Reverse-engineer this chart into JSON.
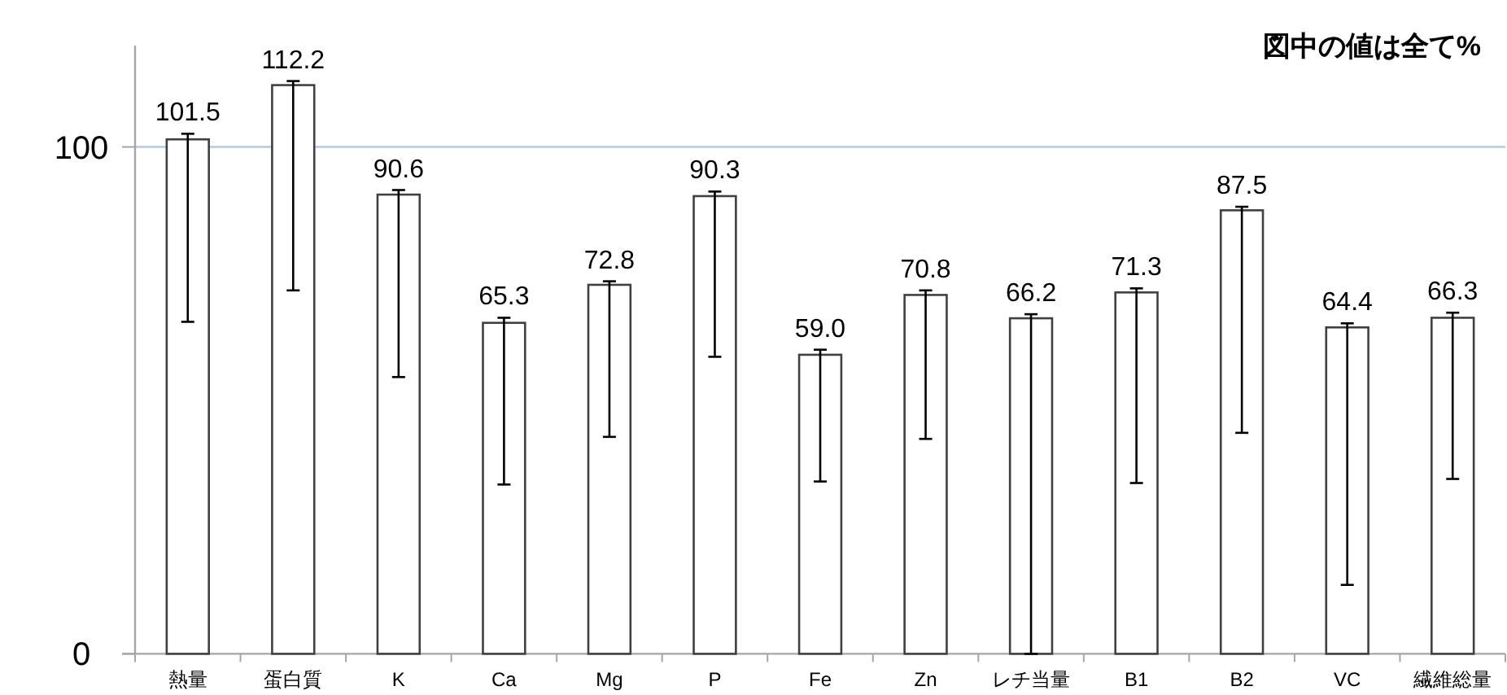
{
  "chart_data": {
    "type": "bar",
    "categories": [
      "熱量",
      "蛋白質",
      "K",
      "Ca",
      "Mg",
      "P",
      "Fe",
      "Zn",
      "レチ当量",
      "B1",
      "B2",
      "VC",
      "繊維総量"
    ],
    "values": [
      101.5,
      112.2,
      90.6,
      65.3,
      72.8,
      90.3,
      59.0,
      70.8,
      66.2,
      71.3,
      87.5,
      64.4,
      66.3
    ],
    "errors": [
      [
        65.5,
        102.6
      ],
      [
        71.7,
        113.0
      ],
      [
        54.6,
        91.5
      ],
      [
        33.4,
        66.3
      ],
      [
        42.8,
        73.5
      ],
      [
        58.6,
        91.2
      ],
      [
        34.0,
        60.0
      ],
      [
        42.4,
        71.7
      ],
      [
        0,
        67.0
      ],
      [
        33.7,
        72.1
      ],
      [
        43.6,
        88.2
      ],
      [
        13.6,
        65.2
      ],
      [
        34.5,
        67.3
      ]
    ],
    "color": "#ffffff",
    "value_labels": [
      "101.5",
      "112.2",
      "90.6",
      "65.3",
      "72.8",
      "90.3",
      "59.0",
      "70.8",
      "66.2",
      "71.3",
      "87.5",
      "64.4",
      "66.3"
    ],
    "ylim": [
      0,
      120
    ],
    "yticks": [
      0,
      100
    ],
    "ref_lines": [
      {
        "axis": "y",
        "value": 100,
        "color": "#b4c7e7"
      }
    ],
    "annotations": [
      "図中の値は全て%"
    ]
  }
}
